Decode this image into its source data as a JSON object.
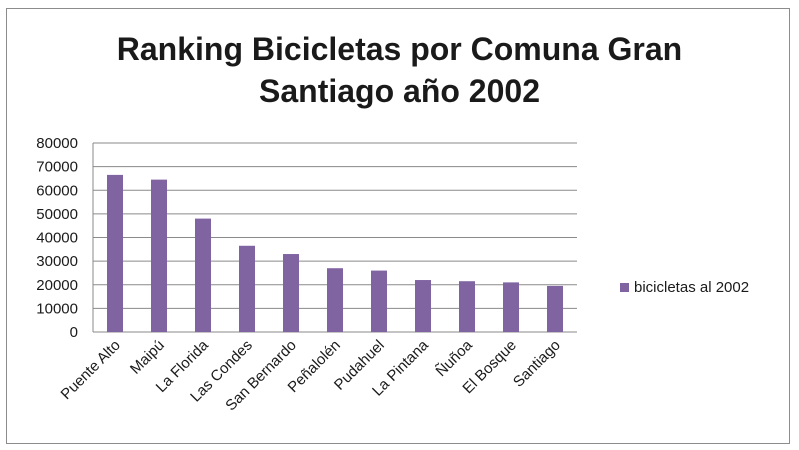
{
  "chart_data": {
    "type": "bar",
    "title_lines": [
      "Ranking Bicicletas por Comuna Gran",
      "Santiago año 2002"
    ],
    "categories": [
      "Puente Alto",
      "Maipú",
      "La Florida",
      "Las Condes",
      "San Bernardo",
      "Peñalolén",
      "Pudahuel",
      "La Pintana",
      "Ñuñoa",
      "El Bosque",
      "Santiago"
    ],
    "series": [
      {
        "name": "bicicletas al 2002",
        "values": [
          66500,
          64500,
          48000,
          36500,
          33000,
          27000,
          26000,
          22000,
          21500,
          21000,
          19500
        ]
      }
    ],
    "ylim": [
      0,
      80000
    ],
    "yticks": [
      "80000",
      "70000",
      "60000",
      "50000",
      "40000",
      "30000",
      "20000",
      "10000",
      "0"
    ],
    "grid": true,
    "legend_position": "right",
    "color": "#8064a2"
  }
}
